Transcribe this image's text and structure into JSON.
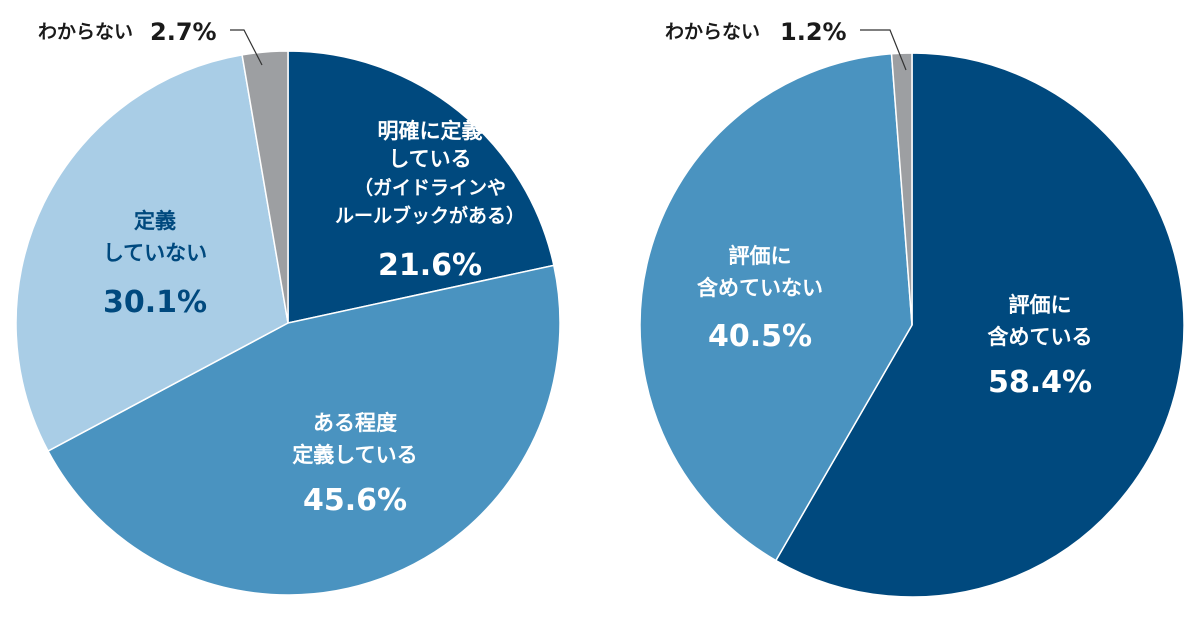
{
  "chart_data": [
    {
      "type": "pie",
      "start": "top",
      "direction": "clockwise",
      "slices": [
        {
          "label_lines": [
            "明確に定義",
            "している",
            "（ガイドラインや",
            "ルールブックがある）"
          ],
          "value": 21.6,
          "value_text": "21.6%",
          "color": "#00497e",
          "text_color": "#ffffff"
        },
        {
          "label_lines": [
            "ある程度",
            "定義している"
          ],
          "value": 45.6,
          "value_text": "45.6%",
          "color": "#4a93c0",
          "text_color": "#ffffff"
        },
        {
          "label_lines": [
            "定義",
            "していない"
          ],
          "value": 30.1,
          "value_text": "30.1%",
          "color": "#a9cde6",
          "text_color": "#00497e"
        },
        {
          "label_lines": [
            "わからない"
          ],
          "value": 2.7,
          "value_text": "2.7%",
          "color": "#9d9fa2",
          "text_color": "#1a1a1a"
        }
      ]
    },
    {
      "type": "pie",
      "start": "top",
      "direction": "clockwise",
      "slices": [
        {
          "label_lines": [
            "評価に",
            "含めている"
          ],
          "value": 58.4,
          "value_text": "58.4%",
          "color": "#00497e",
          "text_color": "#ffffff"
        },
        {
          "label_lines": [
            "評価に",
            "含めていない"
          ],
          "value": 40.5,
          "value_text": "40.5%",
          "color": "#4a93c0",
          "text_color": "#ffffff"
        },
        {
          "label_lines": [
            "わからない"
          ],
          "value": 1.2,
          "value_text": "1.2%",
          "color": "#9d9fa2",
          "text_color": "#1a1a1a"
        }
      ]
    }
  ]
}
